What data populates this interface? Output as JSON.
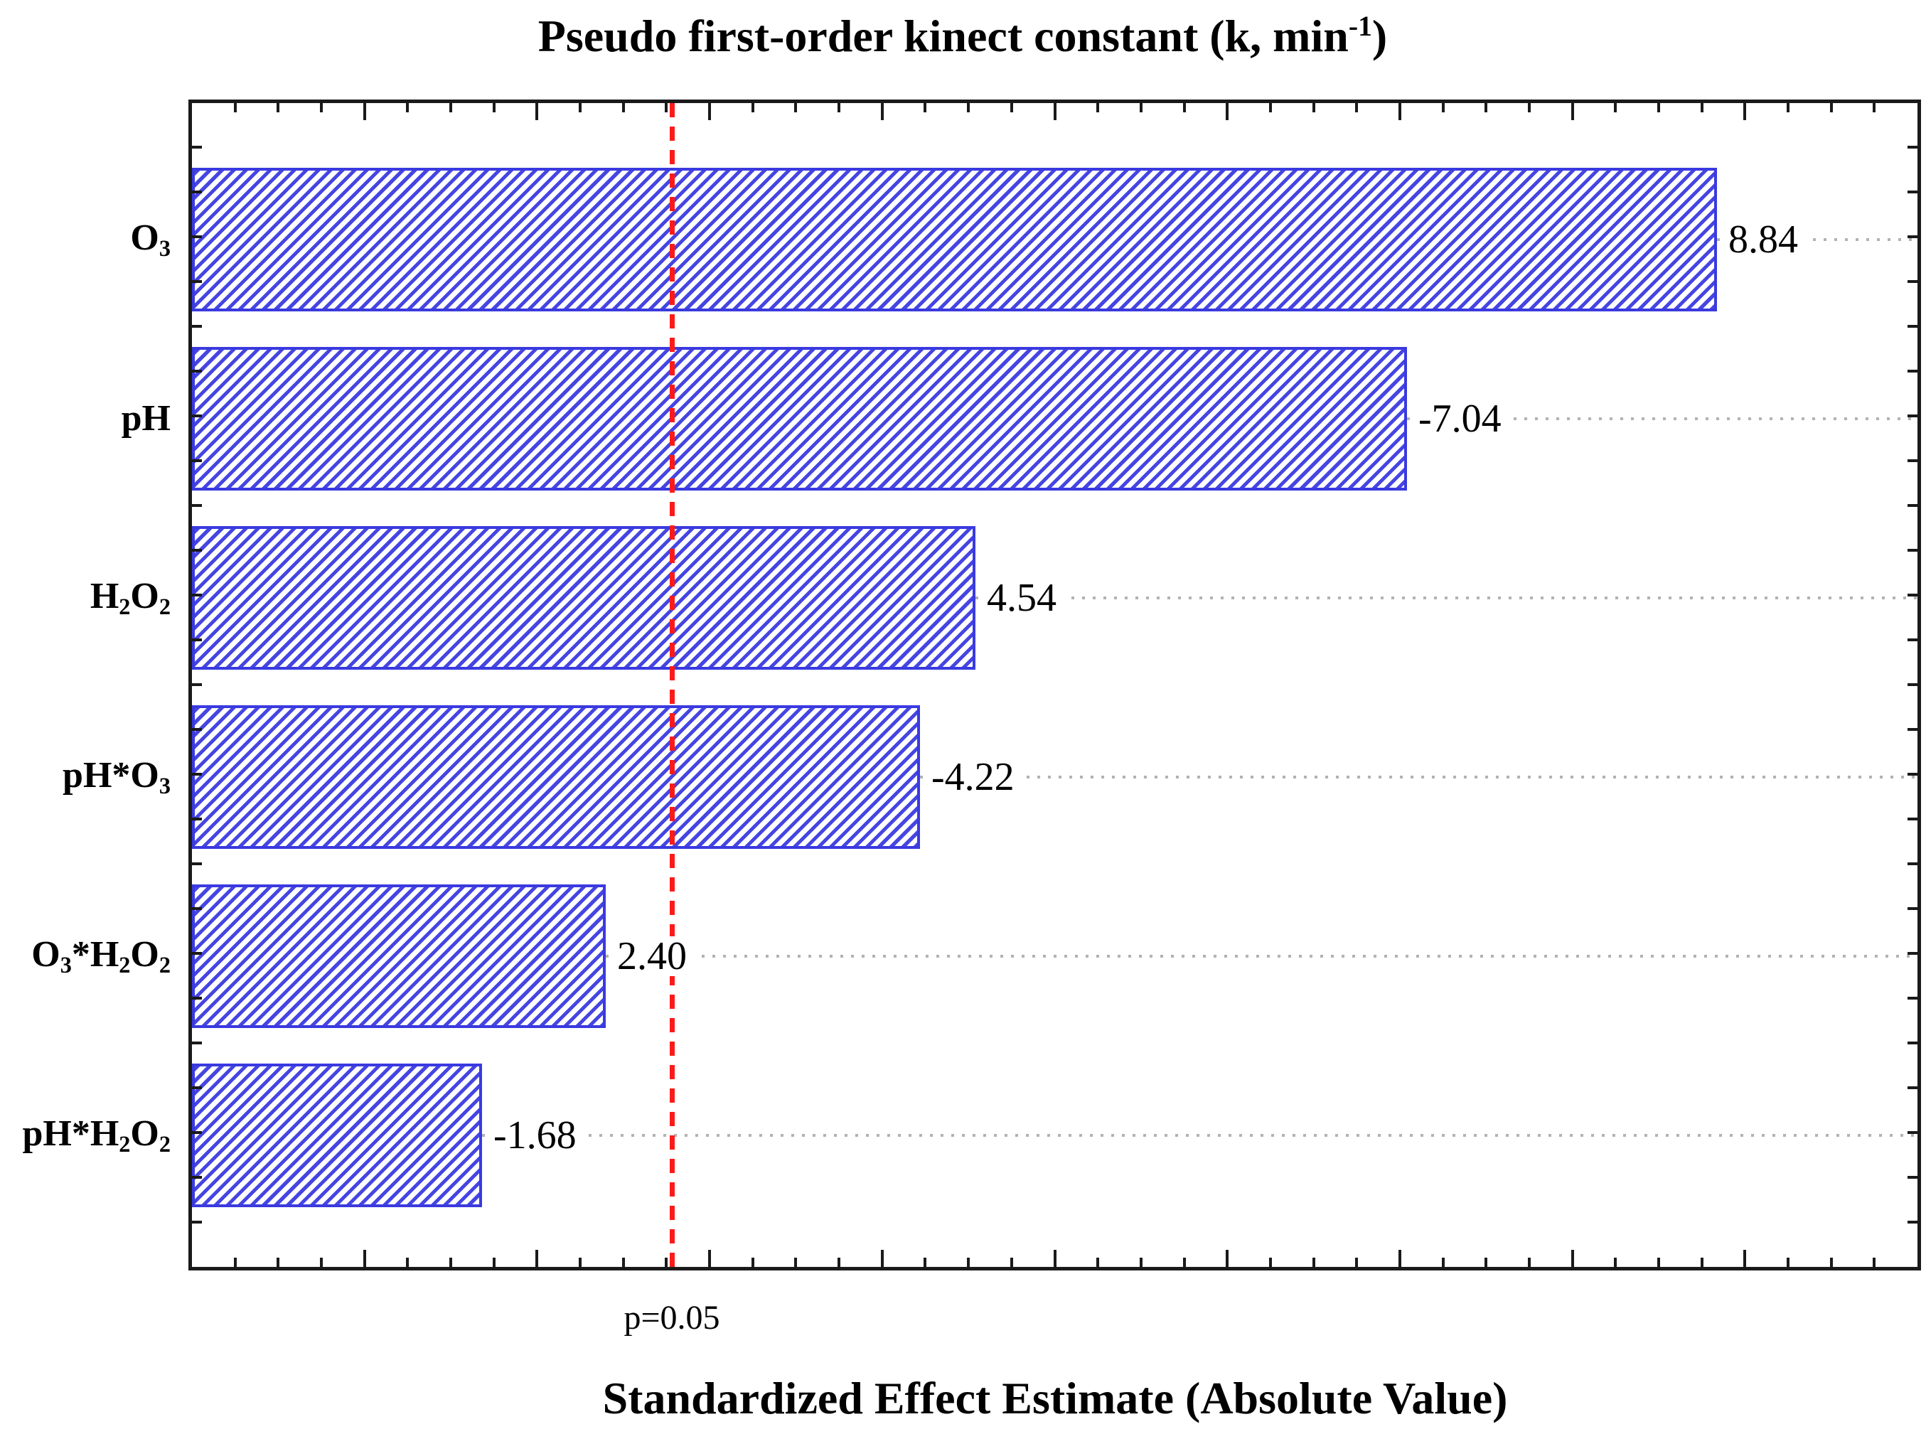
{
  "chart_data": {
    "type": "bar",
    "orientation": "horizontal",
    "title_parts": {
      "main": "Pseudo first-order kinect constant (k, min",
      "sup": "-1",
      "close": ")"
    },
    "title_plain": "Pseudo first-order kinect constant (k, min-1)",
    "xlabel": "Standardized Effect Estimate (Absolute Value)",
    "categories": [
      "O_3",
      "pH",
      "H_2O_2",
      "pH*O_3",
      "O_3*H_2O_2",
      "pH*H_2O_2"
    ],
    "values": [
      8.84,
      -7.04,
      4.54,
      -4.22,
      2.4,
      -1.68
    ],
    "value_labels": [
      "8.84",
      "-7.04",
      "4.54",
      "-4.22",
      "2.40",
      "-1.68"
    ],
    "bar_length_basis": "absolute_value",
    "xlim": [
      0,
      10
    ],
    "x_minor_tick_step": 0.25,
    "x_major_tick_step": 1.0,
    "ref_line": {
      "value": 2.78,
      "label": "p=0.05"
    },
    "grid": "dotted gray horizontal line at each bar center, from bar end to right axis",
    "legend": "none",
    "colors": {
      "bar_hatch": "#4545e2",
      "bar_border": "#3a3ae0",
      "ref_line": "#ff1a1a",
      "grid_dots": "#b2b2b2",
      "axis": "#1a1a1a",
      "text": "#000000"
    }
  }
}
